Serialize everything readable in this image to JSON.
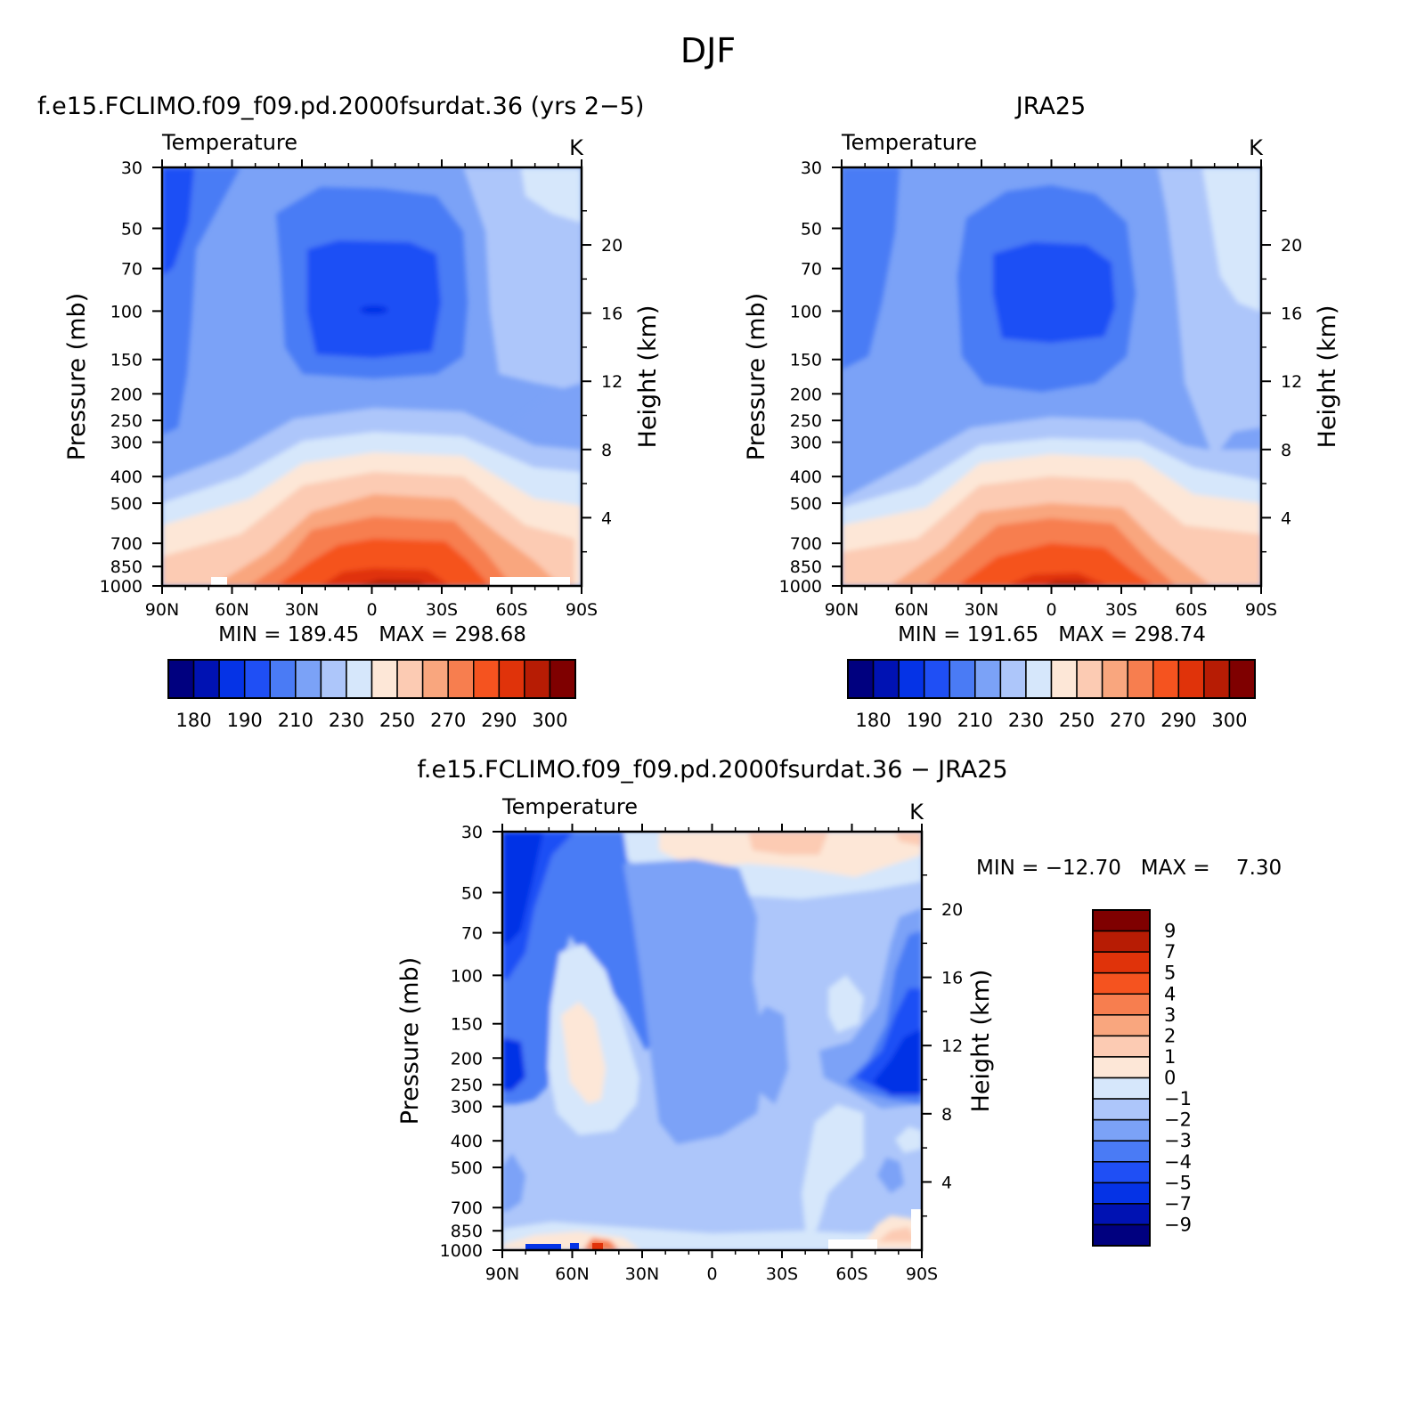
{
  "page_title": "DJF",
  "palette_temp": [
    "#00007f",
    "#0012b3",
    "#0533e6",
    "#1f4ff5",
    "#4a7bf5",
    "#7ba2f7",
    "#adc6fa",
    "#d6e7fb",
    "#fde7d7",
    "#fccbb3",
    "#f9a67e",
    "#f77e4f",
    "#f5531f",
    "#e0330a",
    "#b71c04",
    "#7f0000"
  ],
  "palette_diff": [
    "#00007f",
    "#0012b3",
    "#0533e6",
    "#1f4ff5",
    "#4a7bf5",
    "#7ba2f7",
    "#adc6fa",
    "#d6e7fb",
    "#fde7d7",
    "#fccbb3",
    "#f9a67e",
    "#f77e4f",
    "#f5531f",
    "#e0330a",
    "#b71c04",
    "#7f0000"
  ],
  "chart_data": [
    {
      "type": "heatmap",
      "panel_title": "f.e15.FCLIMO.f09_f09.pd.2000fsurdat.36 (yrs 2−5)",
      "title": "Temperature",
      "units": "K",
      "ylabel": "Pressure (mb)",
      "y2label": "Height (km)",
      "x_ticks": [
        "90N",
        "60N",
        "30N",
        "0",
        "30S",
        "60S",
        "90S"
      ],
      "y_ticks": [
        "30",
        "50",
        "70",
        "100",
        "150",
        "200",
        "250",
        "300",
        "400",
        "500",
        "700",
        "850",
        "1000"
      ],
      "y2_ticks": [
        "20",
        "16",
        "12",
        "8",
        "4"
      ],
      "xlim": [
        90,
        -90
      ],
      "ylim": [
        1000,
        30
      ],
      "y_scale": "log",
      "min_max_text": "MIN = 189.45   MAX = 298.68",
      "colorbar_labels": [
        "180",
        "190",
        "210",
        "230",
        "250",
        "270",
        "290",
        "300"
      ],
      "levels": [
        180,
        185,
        190,
        200,
        210,
        220,
        230,
        240,
        250,
        260,
        270,
        280,
        290,
        295,
        300
      ]
    },
    {
      "type": "heatmap",
      "panel_title": "JRA25",
      "title": "Temperature",
      "units": "K",
      "ylabel": "Pressure (mb)",
      "y2label": "Height (km)",
      "x_ticks": [
        "90N",
        "60N",
        "30N",
        "0",
        "30S",
        "60S",
        "90S"
      ],
      "y_ticks": [
        "30",
        "50",
        "70",
        "100",
        "150",
        "200",
        "250",
        "300",
        "400",
        "500",
        "700",
        "850",
        "1000"
      ],
      "y2_ticks": [
        "20",
        "16",
        "12",
        "8",
        "4"
      ],
      "xlim": [
        90,
        -90
      ],
      "ylim": [
        1000,
        30
      ],
      "y_scale": "log",
      "min_max_text": "MIN = 191.65   MAX = 298.74",
      "colorbar_labels": [
        "180",
        "190",
        "210",
        "230",
        "250",
        "270",
        "290",
        "300"
      ],
      "levels": [
        180,
        185,
        190,
        200,
        210,
        220,
        230,
        240,
        250,
        260,
        270,
        280,
        290,
        295,
        300
      ]
    },
    {
      "type": "heatmap",
      "panel_title": "f.e15.FCLIMO.f09_f09.pd.2000fsurdat.36 − JRA25",
      "title": "Temperature",
      "units": "K",
      "ylabel": "Pressure (mb)",
      "y2label": "Height (km)",
      "x_ticks": [
        "90N",
        "60N",
        "30N",
        "0",
        "30S",
        "60S",
        "90S"
      ],
      "y_ticks": [
        "30",
        "50",
        "70",
        "100",
        "150",
        "200",
        "250",
        "300",
        "400",
        "500",
        "700",
        "850",
        "1000"
      ],
      "y2_ticks": [
        "20",
        "16",
        "12",
        "8",
        "4"
      ],
      "xlim": [
        90,
        -90
      ],
      "ylim": [
        1000,
        30
      ],
      "y_scale": "log",
      "min_max_text": "MIN = −12.70   MAX =    7.30",
      "colorbar_labels": [
        "9",
        "7",
        "5",
        "4",
        "3",
        "2",
        "1",
        "0",
        "−1",
        "−2",
        "−3",
        "−4",
        "−5",
        "−7",
        "−9"
      ],
      "levels": [
        -9,
        -7,
        -5,
        -4,
        -3,
        -2,
        -1,
        0,
        1,
        2,
        3,
        4,
        5,
        7,
        9
      ]
    }
  ]
}
